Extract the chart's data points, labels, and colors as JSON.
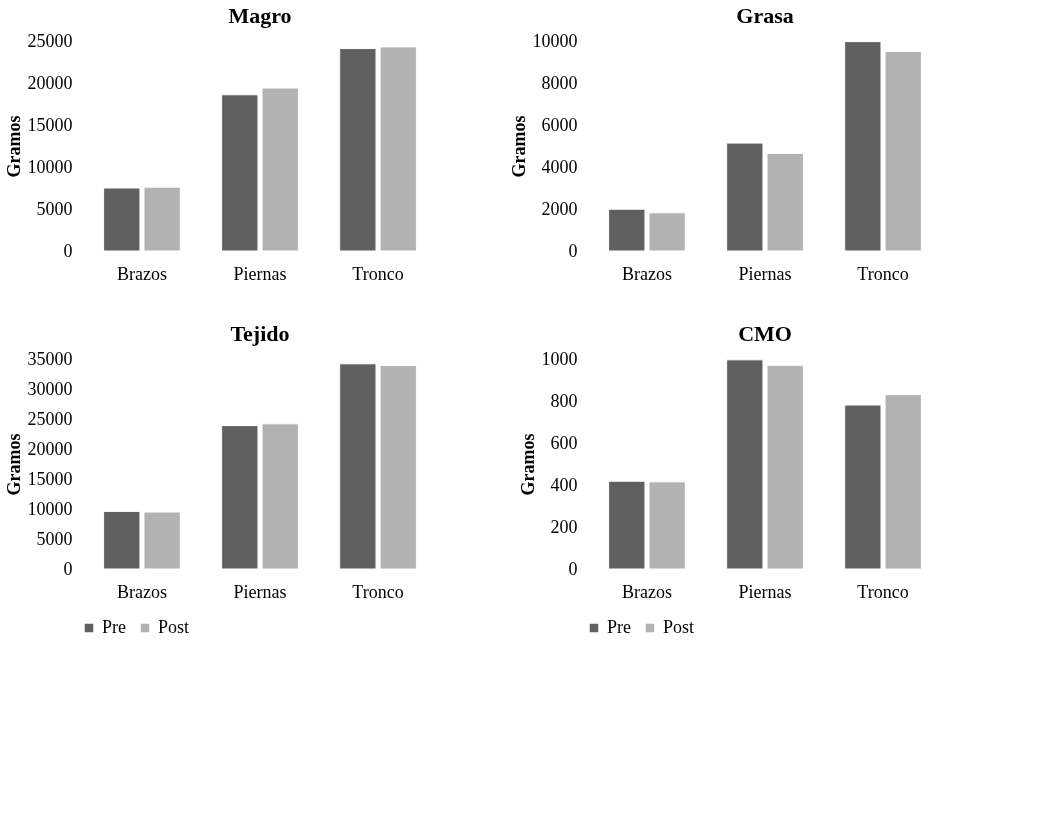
{
  "chart_data": [
    {
      "type": "bar",
      "title": "Magro",
      "ylabel": "Gramos",
      "categories": [
        "Brazos",
        "Piernas",
        "Tronco"
      ],
      "ylim": [
        0,
        25000
      ],
      "yticks": [
        0,
        5000,
        10000,
        15000,
        20000,
        25000
      ],
      "grid": false,
      "legend": "bottom",
      "series": [
        {
          "name": "Pre",
          "color": "#606060",
          "values": [
            7500,
            18600,
            24100
          ]
        },
        {
          "name": "Post",
          "color": "#b2b2b2",
          "values": [
            7600,
            19400,
            24300
          ]
        }
      ]
    },
    {
      "type": "bar",
      "title": "Grasa",
      "ylabel": "Gramos",
      "categories": [
        "Brazos",
        "Piernas",
        "Tronco"
      ],
      "ylim": [
        0,
        10000
      ],
      "yticks": [
        0,
        2000,
        4000,
        6000,
        8000,
        10000
      ],
      "grid": false,
      "legend": "bottom",
      "series": [
        {
          "name": "Pre",
          "color": "#606060",
          "values": [
            1990,
            5140,
            9970
          ]
        },
        {
          "name": "Post",
          "color": "#b2b2b2",
          "values": [
            1820,
            4650,
            9500
          ]
        }
      ]
    },
    {
      "type": "bar",
      "title": "Tejido",
      "ylabel": "Gramos",
      "categories": [
        "Brazos",
        "Piernas",
        "Tronco"
      ],
      "ylim": [
        0,
        35000
      ],
      "yticks": [
        0,
        5000,
        10000,
        15000,
        20000,
        25000,
        30000,
        35000
      ],
      "grid": false,
      "legend": "bottom",
      "series": [
        {
          "name": "Pre",
          "color": "#606060",
          "values": [
            9600,
            23900,
            34200
          ]
        },
        {
          "name": "Post",
          "color": "#b2b2b2",
          "values": [
            9500,
            24200,
            33900
          ]
        }
      ]
    },
    {
      "type": "bar",
      "title": "CMO",
      "ylabel": "Gramos",
      "categories": [
        "Brazos",
        "Piernas",
        "Tronco"
      ],
      "ylim": [
        0,
        1000
      ],
      "yticks": [
        0,
        200,
        400,
        600,
        800,
        1000
      ],
      "grid": false,
      "legend": "bottom",
      "series": [
        {
          "name": "Pre",
          "color": "#606060",
          "values": [
            418,
            996,
            781
          ]
        },
        {
          "name": "Post",
          "color": "#b2b2b2",
          "values": [
            415,
            970,
            830
          ]
        }
      ]
    }
  ]
}
